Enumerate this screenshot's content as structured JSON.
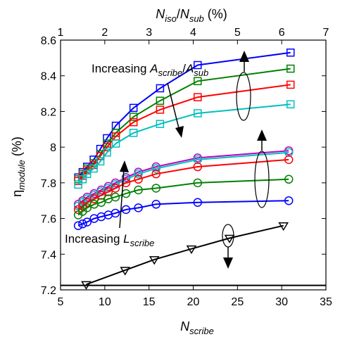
{
  "chart_data": {
    "type": "line",
    "xlabel": {
      "main": "N",
      "sub": "scribe"
    },
    "x2label": {
      "p1": "N",
      "s1": "iso",
      "slash": "/",
      "p2": "N",
      "s2": "sub",
      "unit": " (%)"
    },
    "ylabel": {
      "main": "η",
      "sub": "module",
      "unit": " (%)"
    },
    "xlim": [
      5,
      35
    ],
    "ylim": [
      7.2,
      8.6
    ],
    "x2lim": [
      1,
      7
    ],
    "xticks": [
      "5",
      "10",
      "15",
      "20",
      "25",
      "30",
      "35"
    ],
    "x2ticks": [
      "1",
      "2",
      "3",
      "4",
      "5",
      "6",
      "7"
    ],
    "yticks": [
      "7.2",
      "7.4",
      "7.6",
      "7.8",
      "8",
      "8.2",
      "8.4",
      "8.6"
    ],
    "annotations": {
      "scribe_ratio": {
        "prefix": "Increasing ",
        "p1": "A",
        "s1": "scribe",
        "slash": "/",
        "p2": "A",
        "s2": "sub"
      },
      "lscribe": {
        "prefix": "Increasing ",
        "p1": "L",
        "s1": "scribe"
      }
    },
    "baseline": {
      "y": 7.225,
      "color": "#000000"
    },
    "series_secondary": [
      {
        "marker": "square",
        "color": "#0000ff",
        "x": [
          1.4,
          1.5,
          1.6,
          1.75,
          1.9,
          2.05,
          2.25,
          2.65,
          3.25,
          4.1,
          6.2
        ],
        "y": [
          7.83,
          7.86,
          7.89,
          7.93,
          7.99,
          8.05,
          8.12,
          8.22,
          8.33,
          8.46,
          8.53
        ]
      },
      {
        "marker": "square",
        "color": "#008000",
        "x": [
          1.4,
          1.5,
          1.6,
          1.75,
          1.9,
          2.05,
          2.25,
          2.65,
          3.25,
          4.1,
          6.2
        ],
        "y": [
          7.82,
          7.85,
          7.88,
          7.91,
          7.96,
          8.02,
          8.08,
          8.17,
          8.26,
          8.37,
          8.44
        ]
      },
      {
        "marker": "square",
        "color": "#ff0000",
        "x": [
          1.4,
          1.5,
          1.6,
          1.75,
          1.9,
          2.05,
          2.25,
          2.65,
          3.25,
          4.1,
          6.2
        ],
        "y": [
          7.81,
          7.84,
          7.87,
          7.9,
          7.95,
          8.0,
          8.06,
          8.14,
          8.21,
          8.28,
          8.35
        ]
      },
      {
        "marker": "square",
        "color": "#00bfbf",
        "x": [
          1.4,
          1.5,
          1.6,
          1.75,
          1.9,
          2.05,
          2.25,
          2.65,
          3.25,
          4.1,
          6.2
        ],
        "y": [
          7.79,
          7.82,
          7.85,
          7.88,
          7.92,
          7.97,
          8.02,
          8.08,
          8.13,
          8.19,
          8.24
        ]
      }
    ],
    "series_primary": [
      {
        "marker": "circle",
        "color": "#bf00bf",
        "x": [
          7,
          7.5,
          8,
          8.8,
          9.6,
          10.4,
          11.2,
          12.4,
          13.8,
          15.8,
          20.5,
          30.8
        ],
        "y": [
          7.68,
          7.7,
          7.72,
          7.74,
          7.76,
          7.78,
          7.8,
          7.83,
          7.86,
          7.89,
          7.94,
          7.98
        ]
      },
      {
        "marker": "circle",
        "color": "#00bfbf",
        "x": [
          7,
          7.5,
          8,
          8.8,
          9.6,
          10.4,
          11.2,
          12.4,
          13.8,
          15.8,
          20.5,
          30.8
        ],
        "y": [
          7.67,
          7.69,
          7.71,
          7.73,
          7.75,
          7.77,
          7.79,
          7.82,
          7.85,
          7.88,
          7.93,
          7.97
        ]
      },
      {
        "marker": "circle",
        "color": "#ff0000",
        "x": [
          7,
          7.5,
          8,
          8.8,
          9.6,
          10.4,
          11.2,
          12.4,
          13.8,
          15.8,
          20.5,
          30.8
        ],
        "y": [
          7.65,
          7.67,
          7.69,
          7.71,
          7.73,
          7.75,
          7.77,
          7.8,
          7.82,
          7.85,
          7.89,
          7.93
        ]
      },
      {
        "marker": "circle",
        "color": "#008000",
        "x": [
          7,
          7.5,
          8,
          8.8,
          9.6,
          10.4,
          11.2,
          12.4,
          13.8,
          15.8,
          20.5,
          30.8
        ],
        "y": [
          7.62,
          7.64,
          7.66,
          7.68,
          7.69,
          7.71,
          7.72,
          7.74,
          7.76,
          7.77,
          7.8,
          7.82
        ]
      },
      {
        "marker": "circle",
        "color": "#0000ff",
        "x": [
          7,
          7.5,
          8,
          8.8,
          9.6,
          10.4,
          11.2,
          12.4,
          13.8,
          15.8,
          20.5,
          30.8
        ],
        "y": [
          7.56,
          7.57,
          7.58,
          7.6,
          7.61,
          7.62,
          7.63,
          7.65,
          7.66,
          7.68,
          7.69,
          7.7
        ]
      },
      {
        "marker": "triangle-down",
        "color": "#000000",
        "x": [
          7.9,
          12.3,
          15.6,
          19.8,
          24.1,
          30.2
        ],
        "y": [
          7.23,
          7.31,
          7.37,
          7.43,
          7.49,
          7.56
        ]
      }
    ]
  }
}
